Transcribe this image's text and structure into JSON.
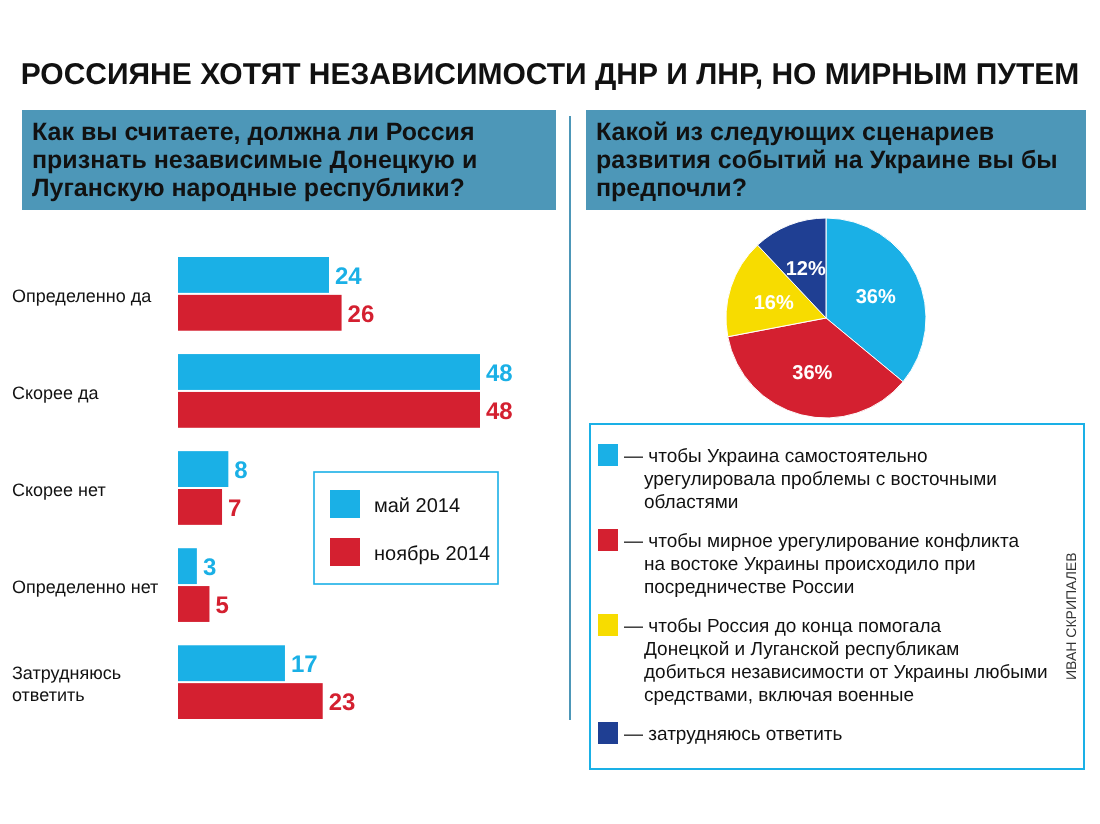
{
  "chart_data": [
    {
      "type": "bar",
      "title": "РОССИЯНЕ ХОТЯТ НЕЗАВИСИМОСТИ ДНР И ЛНР, НО МИРНЫМ ПУТЕМ",
      "subtitle": "Как вы считаете, должна ли Россия признать независимые Донецкую и Луганскую народные республики?",
      "orientation": "horizontal",
      "categories": [
        "Определенно да",
        "Скорее да",
        "Скорее нет",
        "Определенно нет",
        "Затрудняюсь ответить"
      ],
      "series": [
        {
          "name": "май 2014",
          "color": "#1ab0e6",
          "values": [
            24,
            48,
            8,
            3,
            17
          ]
        },
        {
          "name": "ноябрь 2014",
          "color": "#d42030",
          "values": [
            26,
            48,
            7,
            5,
            23
          ]
        }
      ],
      "data_labels": true,
      "legend": "right"
    },
    {
      "type": "pie",
      "title": "Какой из следующих сценариев развития событий на Украине вы бы предпочли?",
      "categories": [
        "— чтобы Украина самостоятельно урегулировала проблемы с восточными областями",
        "— чтобы мирное урегулирование конфликта на востоке Украины происходило при посредничестве России",
        "— чтобы Россия до конца помогала Донецкой и Луганской республикам добиться независимости от Украины любыми средствами, включая военные",
        "— затрудняюсь ответить"
      ],
      "values": [
        36,
        36,
        16,
        12
      ],
      "colors": [
        "#1ab0e6",
        "#d42030",
        "#f7dc00",
        "#1f3f93"
      ],
      "value_labels": [
        "36%",
        "36%",
        "16%",
        "12%"
      ],
      "legend": "bottom",
      "annotations": [
        "ИВАН СКРИПАЛЕВ"
      ]
    }
  ]
}
